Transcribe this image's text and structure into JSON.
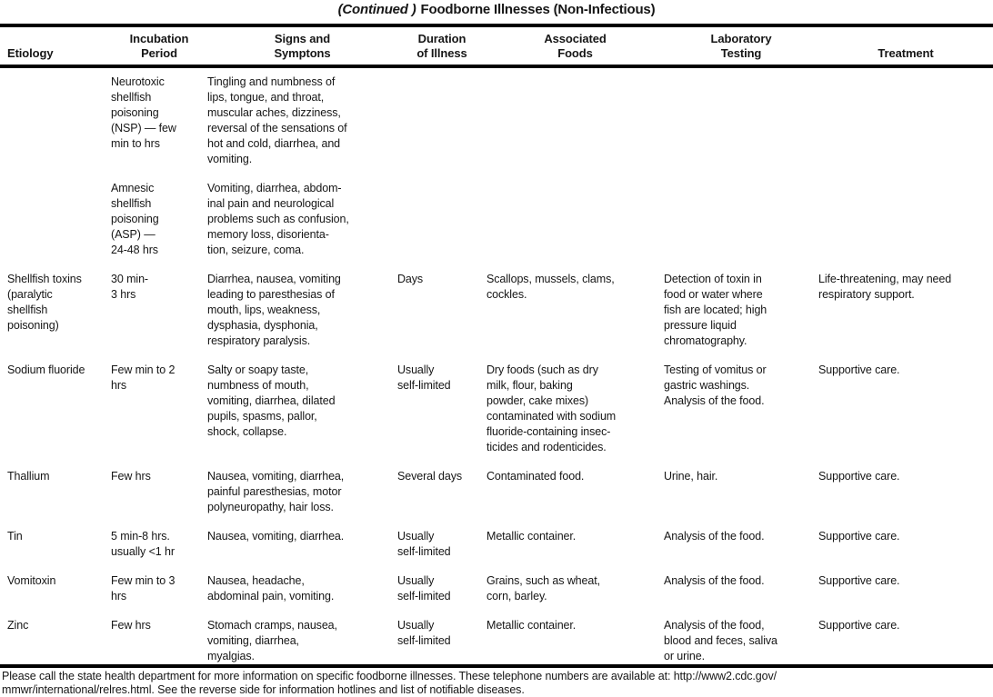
{
  "title": {
    "continued": "(Continued )",
    "main": "Foodborne Illnesses (Non-Infectious)"
  },
  "table": {
    "columns": [
      "Etiology",
      "Incubation\nPeriod",
      "Signs and\nSymptons",
      "Duration\nof Illness",
      "Associated\nFoods",
      "Laboratory\nTesting",
      "Treatment"
    ],
    "rows": [
      {
        "etiology": "",
        "incubation": "Neurotoxic\nshellfish\npoisoning\n(NSP) — few\nmin to hrs",
        "signs": "Tingling and numbness of\nlips, tongue, and throat,\nmuscular aches, dizziness,\nreversal of the sensations of\nhot and cold, diarrhea, and\nvomiting.",
        "duration": "",
        "foods": "",
        "lab": "",
        "treatment": ""
      },
      {
        "etiology": "",
        "incubation": "Amnesic\nshellfish\npoisoning\n(ASP) —\n24-48 hrs",
        "signs": "Vomiting, diarrhea, abdom-\ninal pain and neurological\nproblems such as confusion,\nmemory loss, disorienta-\ntion, seizure, coma.",
        "duration": "",
        "foods": "",
        "lab": "",
        "treatment": ""
      },
      {
        "etiology": "Shellfish toxins\n(paralytic\nshellfish\npoisoning)",
        "incubation": "30 min-\n3 hrs",
        "signs": "Diarrhea, nausea, vomiting\nleading to paresthesias of\nmouth, lips, weakness,\ndysphasia, dysphonia,\nrespiratory paralysis.",
        "duration": "Days",
        "foods": "Scallops, mussels, clams,\ncockles.",
        "lab": "Detection of toxin in\nfood or water where\nfish are located; high\npressure liquid\nchromatography.",
        "treatment": "Life-threatening, may need\nrespiratory support."
      },
      {
        "etiology": "Sodium fluoride",
        "incubation": "Few min to 2\nhrs",
        "signs": "Salty or soapy taste,\nnumbness of mouth,\nvomiting, diarrhea, dilated\npupils, spasms, pallor,\nshock, collapse.",
        "duration": "Usually\nself-limited",
        "foods": "Dry foods (such as dry\nmilk, flour, baking\npowder, cake mixes)\ncontaminated with sodium\nfluoride-containing insec-\nticides and rodenticides.",
        "lab": "Testing of vomitus or\ngastric washings.\nAnalysis of the food.",
        "treatment": "Supportive care."
      },
      {
        "etiology": "Thallium",
        "incubation": "Few hrs",
        "signs": "Nausea, vomiting, diarrhea,\npainful paresthesias, motor\npolyneuropathy, hair loss.",
        "duration": "Several days",
        "foods": "Contaminated food.",
        "lab": "Urine, hair.",
        "treatment": "Supportive care."
      },
      {
        "etiology": "Tin",
        "incubation": "5 min-8 hrs.\nusually <1 hr",
        "signs": "Nausea, vomiting, diarrhea.",
        "duration": "Usually\nself-limited",
        "foods": "Metallic container.",
        "lab": "Analysis of the food.",
        "treatment": "Supportive care."
      },
      {
        "etiology": "Vomitoxin",
        "incubation": "Few min to 3\nhrs",
        "signs": "Nausea, headache,\nabdominal pain, vomiting.",
        "duration": "Usually\nself-limited",
        "foods": "Grains, such as wheat,\ncorn, barley.",
        "lab": "Analysis of the food.",
        "treatment": "Supportive care."
      },
      {
        "etiology": "Zinc",
        "incubation": "Few hrs",
        "signs": "Stomach cramps, nausea,\nvomiting, diarrhea,\nmyalgias.",
        "duration": "Usually\nself-limited",
        "foods": "Metallic container.",
        "lab": "Analysis of the food,\nblood and feces, saliva\nor urine.",
        "treatment": "Supportive care."
      }
    ]
  },
  "footer": {
    "text": "Please call the state health department for more information on specific foodborne illnesses. These telephone numbers are available at: http://www2.cdc.gov/\nmmwr/international/relres.html. See the reverse side for information hotlines and list of notifiable diseases."
  }
}
